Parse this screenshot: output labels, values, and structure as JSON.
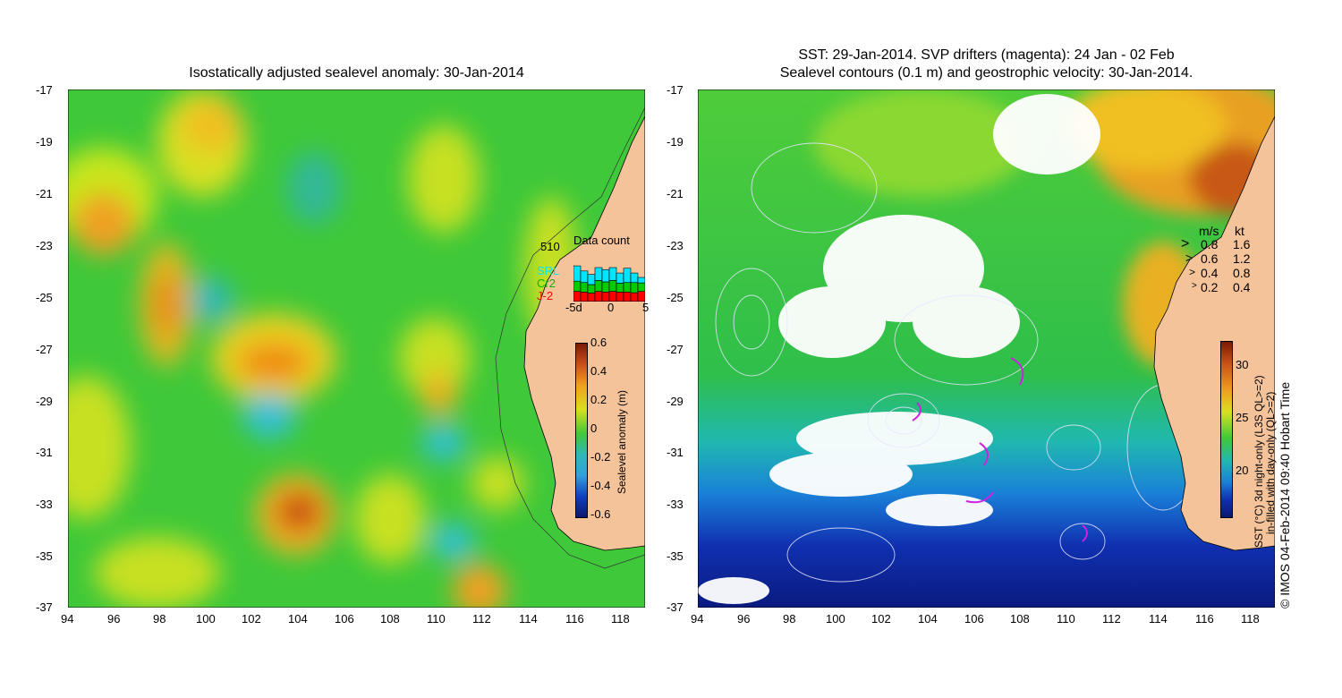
{
  "left_panel": {
    "title": "Isostatically adjusted sealevel anomaly: 30-Jan-2014",
    "lat_ticks": [
      "-17",
      "-19",
      "-21",
      "-23",
      "-25",
      "-27",
      "-29",
      "-31",
      "-33",
      "-35",
      "-37"
    ],
    "lon_ticks": [
      "94",
      "96",
      "98",
      "100",
      "102",
      "104",
      "106",
      "108",
      "110",
      "112",
      "114",
      "116",
      "118"
    ],
    "data_count": {
      "title": "Data count",
      "max": "510",
      "legend": [
        "SRL",
        "Cr2",
        "J-2"
      ],
      "legend_colors": [
        "#00e5ff",
        "#00cc00",
        "#ff0000"
      ],
      "x_ticks": [
        "-5d",
        "0",
        "5"
      ],
      "bars": [
        {
          "j2": 0.3,
          "cr2": 0.3,
          "srl": 0.45
        },
        {
          "j2": 0.28,
          "cr2": 0.28,
          "srl": 0.34
        },
        {
          "j2": 0.25,
          "cr2": 0.25,
          "srl": 0.3
        },
        {
          "j2": 0.3,
          "cr2": 0.32,
          "srl": 0.38
        },
        {
          "j2": 0.28,
          "cr2": 0.3,
          "srl": 0.36
        },
        {
          "j2": 0.3,
          "cr2": 0.32,
          "srl": 0.38
        },
        {
          "j2": 0.28,
          "cr2": 0.26,
          "srl": 0.3
        },
        {
          "j2": 0.28,
          "cr2": 0.28,
          "srl": 0.42
        },
        {
          "j2": 0.26,
          "cr2": 0.3,
          "srl": 0.28
        },
        {
          "j2": 0.3,
          "cr2": 0.25,
          "srl": 0.16
        }
      ]
    },
    "colorbar": {
      "label": "Sealevel anomaly (m)",
      "ticks": [
        "0.6",
        "0.4",
        "0.2",
        "0",
        "-0.2",
        "-0.4",
        "-0.6"
      ]
    }
  },
  "right_panel": {
    "title_line1": "SST: 29-Jan-2014. SVP drifters (magenta): 24 Jan - 02 Feb",
    "title_line2": "Sealevel contours (0.1 m) and geostrophic velocity: 30-Jan-2014.",
    "lat_ticks": [
      "-17",
      "-19",
      "-21",
      "-23",
      "-25",
      "-27",
      "-29",
      "-31",
      "-33",
      "-35",
      "-37"
    ],
    "lon_ticks": [
      "94",
      "96",
      "98",
      "100",
      "102",
      "104",
      "106",
      "108",
      "110",
      "112",
      "114",
      "116",
      "118"
    ],
    "velocity_legend": {
      "header_ms": "m/s",
      "header_kt": "kt",
      "rows": [
        {
          "ms": "0.8",
          "kt": "1.6"
        },
        {
          "ms": "0.6",
          "kt": "1.2"
        },
        {
          "ms": "0.4",
          "kt": "0.8"
        },
        {
          "ms": "0.2",
          "kt": "0.4"
        }
      ]
    },
    "colorbar": {
      "label_line1": "SST (°C) 3d night-only (L3S QL>=2)",
      "label_line2": "in-filled with day-only (QL>=2)",
      "ticks": [
        "30",
        "25",
        "20"
      ]
    },
    "credit": "© IMOS 04-Feb-2014 09:40 Hobart Time"
  }
}
